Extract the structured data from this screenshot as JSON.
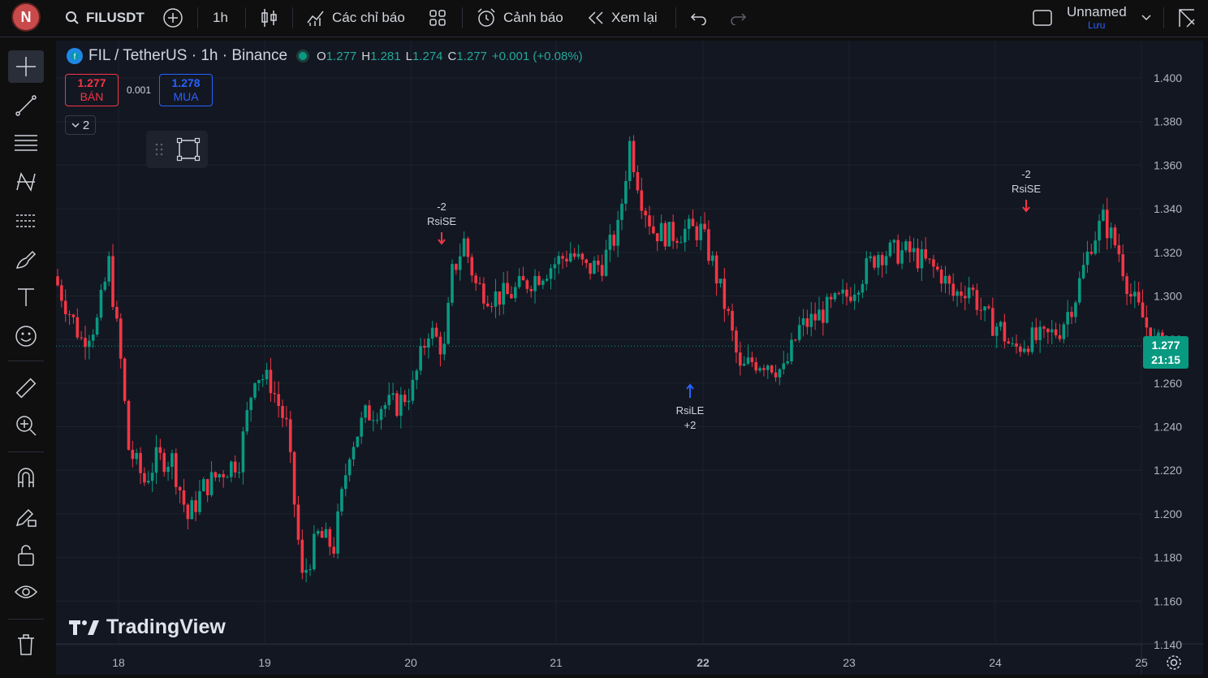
{
  "topbar": {
    "avatar_letter": "N",
    "symbol": "FILUSDT",
    "interval": "1h",
    "indicators_label": "Các chỉ báo",
    "alerts_label": "Cảnh báo",
    "replay_label": "Xem lại",
    "layout_name": "Unnamed",
    "save_label": "Lưu"
  },
  "legend": {
    "title": "FIL / TetherUS · 1h · Binance",
    "o_label": "O",
    "o_value": "1.277",
    "h_label": "H",
    "h_value": "1.281",
    "l_label": "L",
    "l_value": "1.274",
    "c_label": "C",
    "c_value": "1.277",
    "change": "+0.001 (+0.08%)"
  },
  "trade": {
    "sell_price": "1.277",
    "sell_label": "BÁN",
    "spread": "0.001",
    "buy_price": "1.278",
    "buy_label": "MUA"
  },
  "collapse_count": "2",
  "watermark": "TradingView",
  "current_price": {
    "value": "1.277",
    "countdown": "21:15"
  },
  "colors": {
    "up": "#089981",
    "down": "#f23645",
    "bg": "#131722"
  },
  "chart_data": {
    "type": "candlestick",
    "title": "FIL / TetherUS · 1h · Binance",
    "y_ticks": [
      "1.400",
      "1.380",
      "1.360",
      "1.340",
      "1.320",
      "1.300",
      "1.280",
      "1.260",
      "1.240",
      "1.220",
      "1.200",
      "1.180",
      "1.160",
      "1.140"
    ],
    "x_ticks": [
      "18",
      "19",
      "20",
      "21",
      "22",
      "23",
      "24",
      "25"
    ],
    "ylim": [
      1.14,
      1.4
    ],
    "close_anchors": [
      [
        0,
        1.305
      ],
      [
        6,
        1.28
      ],
      [
        10,
        1.288
      ],
      [
        13,
        1.315
      ],
      [
        16,
        1.27
      ],
      [
        18,
        1.23
      ],
      [
        22,
        1.215
      ],
      [
        25,
        1.225
      ],
      [
        29,
        1.225
      ],
      [
        33,
        1.198
      ],
      [
        37,
        1.212
      ],
      [
        42,
        1.22
      ],
      [
        46,
        1.225
      ],
      [
        50,
        1.265
      ],
      [
        54,
        1.26
      ],
      [
        58,
        1.24
      ],
      [
        62,
        1.17
      ],
      [
        66,
        1.19
      ],
      [
        70,
        1.185
      ],
      [
        74,
        1.23
      ],
      [
        78,
        1.245
      ],
      [
        82,
        1.25
      ],
      [
        86,
        1.25
      ],
      [
        90,
        1.258
      ],
      [
        94,
        1.285
      ],
      [
        98,
        1.275
      ],
      [
        100,
        1.31
      ],
      [
        103,
        1.325
      ],
      [
        106,
        1.305
      ],
      [
        110,
        1.3
      ],
      [
        114,
        1.3
      ],
      [
        118,
        1.305
      ],
      [
        122,
        1.31
      ],
      [
        126,
        1.315
      ],
      [
        130,
        1.32
      ],
      [
        134,
        1.312
      ],
      [
        138,
        1.315
      ],
      [
        142,
        1.33
      ],
      [
        145,
        1.37
      ],
      [
        148,
        1.345
      ],
      [
        151,
        1.33
      ],
      [
        155,
        1.328
      ],
      [
        159,
        1.33
      ],
      [
        163,
        1.33
      ],
      [
        166,
        1.315
      ],
      [
        170,
        1.29
      ],
      [
        173,
        1.265
      ],
      [
        176,
        1.27
      ],
      [
        180,
        1.27
      ],
      [
        184,
        1.265
      ],
      [
        188,
        1.285
      ],
      [
        192,
        1.29
      ],
      [
        196,
        1.295
      ],
      [
        200,
        1.3
      ],
      [
        204,
        1.31
      ],
      [
        208,
        1.32
      ],
      [
        212,
        1.32
      ],
      [
        216,
        1.32
      ],
      [
        220,
        1.315
      ],
      [
        224,
        1.31
      ],
      [
        227,
        1.3
      ],
      [
        231,
        1.305
      ],
      [
        235,
        1.29
      ],
      [
        239,
        1.285
      ],
      [
        242,
        1.275
      ],
      [
        246,
        1.28
      ],
      [
        250,
        1.28
      ],
      [
        254,
        1.285
      ],
      [
        258,
        1.3
      ],
      [
        262,
        1.325
      ],
      [
        265,
        1.335
      ],
      [
        269,
        1.32
      ],
      [
        272,
        1.3
      ],
      [
        275,
        1.29
      ],
      [
        278,
        1.278
      ],
      [
        281,
        1.277
      ]
    ],
    "signals": [
      {
        "type": "short",
        "label": "RsiSE",
        "qty": "-2"
      },
      {
        "type": "long",
        "label": "RsiLE",
        "qty": "+2"
      },
      {
        "type": "short",
        "label": "RsiSE",
        "qty": "-2"
      }
    ]
  }
}
